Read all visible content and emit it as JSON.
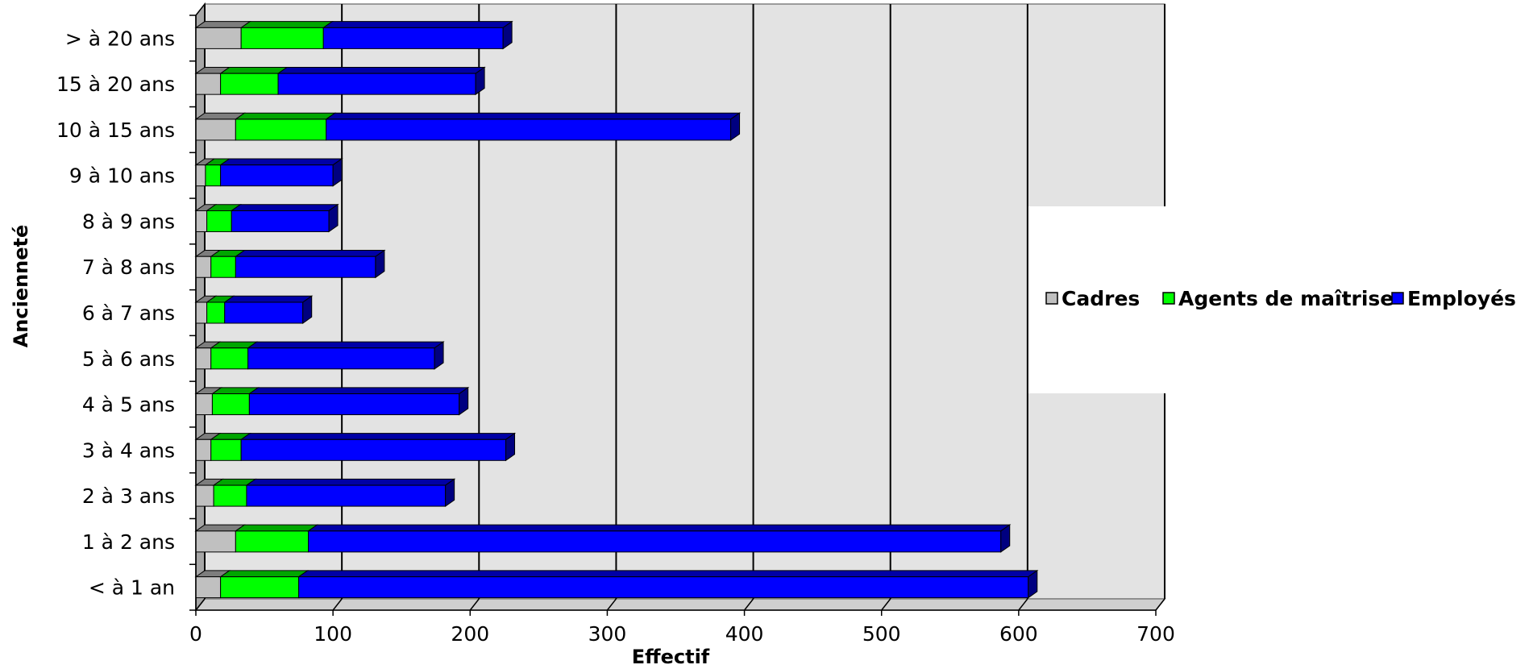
{
  "chart_data": {
    "type": "bar",
    "orientation": "horizontal",
    "stacked": true,
    "style": "3d",
    "categories": [
      "< à 1 an",
      "1 à 2 ans",
      "2 à 3 ans",
      "3 à 4 ans",
      "4 à 5 ans",
      "5 à 6 ans",
      "6 à 7 ans",
      "7 à 8 ans",
      "8 à 9 ans",
      "9 à 10 ans",
      "10 à 15 ans",
      "15 à 20 ans",
      "> à 20 ans"
    ],
    "series": [
      {
        "name": "Cadres",
        "color": "#c0c0c0",
        "values": [
          18,
          29,
          13,
          11,
          12,
          11,
          8,
          11,
          8,
          7,
          29,
          18,
          33
        ]
      },
      {
        "name": "Agents de maîtrise",
        "color": "#00ff00",
        "values": [
          57,
          53,
          24,
          22,
          27,
          27,
          13,
          18,
          18,
          11,
          66,
          42,
          60
        ]
      },
      {
        "name": "Employés",
        "color": "#0000ff",
        "values": [
          532,
          505,
          145,
          193,
          153,
          136,
          57,
          102,
          71,
          82,
          295,
          144,
          131
        ]
      }
    ],
    "xlabel": "Effectif",
    "ylabel": "Ancienneté",
    "xlim": [
      0,
      700
    ],
    "x_ticks": [
      "0",
      "100",
      "200",
      "300",
      "400",
      "500",
      "600",
      "700"
    ],
    "grid": true,
    "legend": "right"
  }
}
